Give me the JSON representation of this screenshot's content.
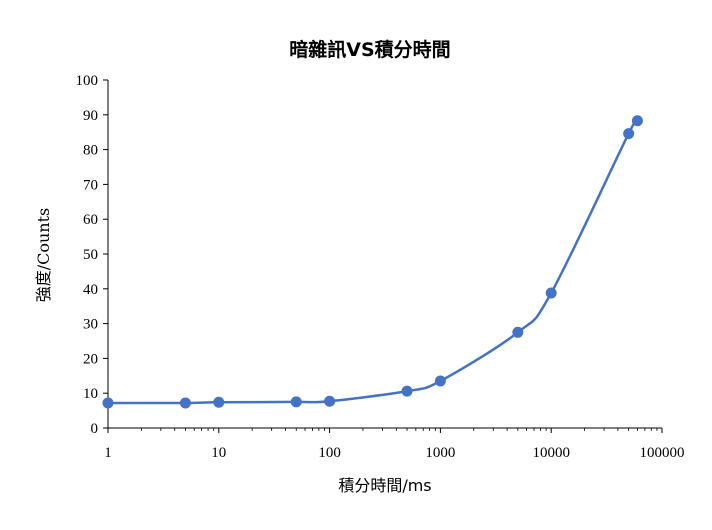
{
  "chart_data": {
    "type": "line",
    "title": "暗雜訊VS積分時間",
    "xlabel": "積分時間/ms",
    "ylabel": "強度/Counts",
    "x_scale": "log",
    "xlim": [
      1,
      100000
    ],
    "ylim": [
      0,
      100
    ],
    "x_ticks": [
      "1",
      "10",
      "100",
      "1000",
      "10000",
      "100000"
    ],
    "y_ticks": [
      "0",
      "10",
      "20",
      "30",
      "40",
      "50",
      "60",
      "70",
      "80",
      "90",
      "100"
    ],
    "grid": false,
    "legend": "none",
    "series": [
      {
        "color": "#4472c4",
        "smooth": true,
        "markers": true,
        "x": [
          1,
          5,
          10,
          50,
          100,
          500,
          1000,
          5000,
          10000,
          50000,
          60000
        ],
        "y": [
          7.2,
          7.2,
          7.4,
          7.5,
          7.7,
          10.6,
          13.5,
          27.5,
          38.8,
          84.6,
          88.3
        ]
      }
    ]
  }
}
